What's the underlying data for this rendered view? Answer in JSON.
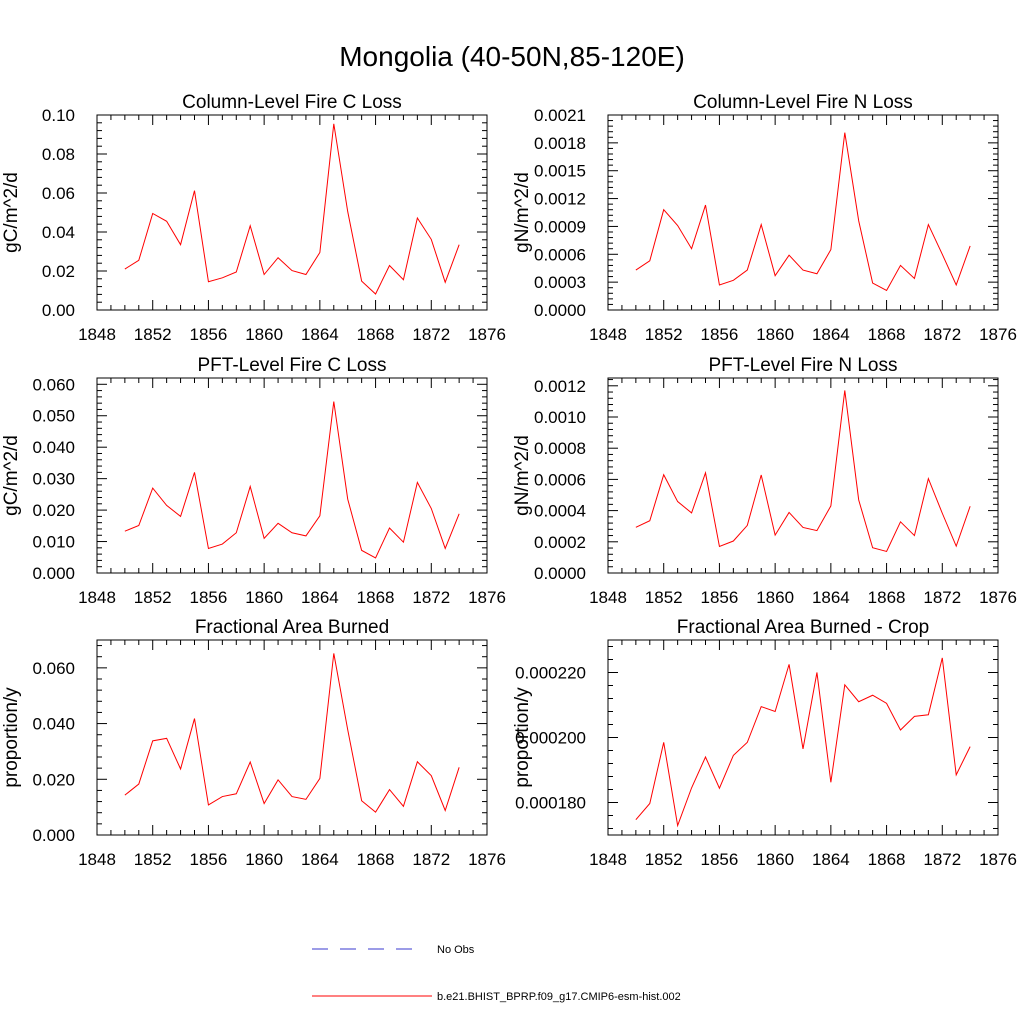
{
  "page_title": "Mongolia (40-50N,85-120E)",
  "legend": {
    "items": [
      {
        "label": "No Obs",
        "color": "#3a3acf",
        "dash": "dashed"
      },
      {
        "label": "b.e21.BHIST_BPRP.f09_g17.CMIP6-esm-hist.002",
        "color": "#ff0000",
        "dash": "solid"
      }
    ]
  },
  "chart_data": [
    {
      "type": "line",
      "title": "Column-Level Fire C Loss",
      "xlabel": "",
      "ylabel": "gC/m^2/d",
      "xlim": [
        1848,
        1876
      ],
      "xticks": [
        1848,
        1852,
        1856,
        1860,
        1864,
        1868,
        1872,
        1876
      ],
      "ylim": [
        0,
        0.1
      ],
      "yticks": [
        0,
        0.02,
        0.04,
        0.06,
        0.08,
        0.1
      ],
      "ytick_labels": [
        "0.00",
        "0.02",
        "0.04",
        "0.06",
        "0.08",
        "0.10"
      ],
      "x": [
        1850,
        1851,
        1852,
        1853,
        1854,
        1855,
        1856,
        1857,
        1858,
        1859,
        1860,
        1861,
        1862,
        1863,
        1864,
        1865,
        1866,
        1867,
        1868,
        1869,
        1870,
        1871,
        1872,
        1873,
        1874
      ],
      "series": [
        {
          "name": "b.e21.BHIST_BPRP.f09_g17.CMIP6-esm-hist.002",
          "color": "#ff0000",
          "values": [
            0.021,
            0.0255,
            0.0495,
            0.0455,
            0.0335,
            0.0612,
            0.0145,
            0.0165,
            0.0195,
            0.0432,
            0.0182,
            0.0268,
            0.0202,
            0.0182,
            0.0295,
            0.0955,
            0.0505,
            0.0148,
            0.0082,
            0.0228,
            0.0155,
            0.0472,
            0.0362,
            0.0142,
            0.0335
          ]
        }
      ]
    },
    {
      "type": "line",
      "title": "Column-Level Fire N Loss",
      "xlabel": "",
      "ylabel": "gN/m^2/d",
      "xlim": [
        1848,
        1876
      ],
      "xticks": [
        1848,
        1852,
        1856,
        1860,
        1864,
        1868,
        1872,
        1876
      ],
      "ylim": [
        0,
        0.0021
      ],
      "yticks": [
        0,
        0.0003,
        0.0006,
        0.0009,
        0.0012,
        0.0015,
        0.0018,
        0.0021
      ],
      "ytick_labels": [
        "0.0000",
        "0.0003",
        "0.0006",
        "0.0009",
        "0.0012",
        "0.0015",
        "0.0018",
        "0.0021"
      ],
      "x": [
        1850,
        1851,
        1852,
        1853,
        1854,
        1855,
        1856,
        1857,
        1858,
        1859,
        1860,
        1861,
        1862,
        1863,
        1864,
        1865,
        1866,
        1867,
        1868,
        1869,
        1870,
        1871,
        1872,
        1873,
        1874
      ],
      "series": [
        {
          "name": "b.e21.BHIST_BPRP.f09_g17.CMIP6-esm-hist.002",
          "color": "#ff0000",
          "values": [
            0.00043,
            0.00053,
            0.00108,
            0.00091,
            0.00066,
            0.00113,
            0.00027,
            0.00032,
            0.00043,
            0.00092,
            0.00037,
            0.00059,
            0.00043,
            0.00039,
            0.00065,
            0.00191,
            0.00096,
            0.00029,
            0.00021,
            0.00048,
            0.00034,
            0.00092,
            0.0006,
            0.00027,
            0.00069
          ]
        }
      ]
    },
    {
      "type": "line",
      "title": "PFT-Level Fire C Loss",
      "xlabel": "",
      "ylabel": "gC/m^2/d",
      "xlim": [
        1848,
        1876
      ],
      "xticks": [
        1848,
        1852,
        1856,
        1860,
        1864,
        1868,
        1872,
        1876
      ],
      "ylim": [
        0,
        0.062
      ],
      "yticks": [
        0,
        0.01,
        0.02,
        0.03,
        0.04,
        0.05,
        0.06
      ],
      "ytick_labels": [
        "0.000",
        "0.010",
        "0.020",
        "0.030",
        "0.040",
        "0.050",
        "0.060"
      ],
      "x": [
        1850,
        1851,
        1852,
        1853,
        1854,
        1855,
        1856,
        1857,
        1858,
        1859,
        1860,
        1861,
        1862,
        1863,
        1864,
        1865,
        1866,
        1867,
        1868,
        1869,
        1870,
        1871,
        1872,
        1873,
        1874
      ],
      "series": [
        {
          "name": "b.e21.BHIST_BPRP.f09_g17.CMIP6-esm-hist.002",
          "color": "#ff0000",
          "values": [
            0.0133,
            0.0151,
            0.027,
            0.0215,
            0.018,
            0.032,
            0.0078,
            0.0092,
            0.0128,
            0.0275,
            0.011,
            0.0158,
            0.0128,
            0.0118,
            0.0182,
            0.0545,
            0.0235,
            0.0072,
            0.0048,
            0.0143,
            0.0098,
            0.0288,
            0.0205,
            0.0078,
            0.0188
          ]
        }
      ]
    },
    {
      "type": "line",
      "title": "PFT-Level Fire N Loss",
      "xlabel": "",
      "ylabel": "gN/m^2/d",
      "xlim": [
        1848,
        1876
      ],
      "xticks": [
        1848,
        1852,
        1856,
        1860,
        1864,
        1868,
        1872,
        1876
      ],
      "ylim": [
        0,
        0.00125
      ],
      "yticks": [
        0,
        0.0002,
        0.0004,
        0.0006,
        0.0008,
        0.001,
        0.0012
      ],
      "ytick_labels": [
        "0.0000",
        "0.0002",
        "0.0004",
        "0.0006",
        "0.0008",
        "0.0010",
        "0.0012"
      ],
      "x": [
        1850,
        1851,
        1852,
        1853,
        1854,
        1855,
        1856,
        1857,
        1858,
        1859,
        1860,
        1861,
        1862,
        1863,
        1864,
        1865,
        1866,
        1867,
        1868,
        1869,
        1870,
        1871,
        1872,
        1873,
        1874
      ],
      "series": [
        {
          "name": "b.e21.BHIST_BPRP.f09_g17.CMIP6-esm-hist.002",
          "color": "#ff0000",
          "values": [
            0.000293,
            0.000335,
            0.00063,
            0.000458,
            0.000385,
            0.000642,
            0.00017,
            0.000205,
            0.000305,
            0.000628,
            0.000243,
            0.000388,
            0.000292,
            0.000272,
            0.00043,
            0.00117,
            0.000468,
            0.000162,
            0.000138,
            0.000328,
            0.00024,
            0.000605,
            0.000383,
            0.000172,
            0.000428
          ]
        }
      ]
    },
    {
      "type": "line",
      "title": "Fractional Area Burned",
      "xlabel": "",
      "ylabel": "proportion/y",
      "xlim": [
        1848,
        1876
      ],
      "xticks": [
        1848,
        1852,
        1856,
        1860,
        1864,
        1868,
        1872,
        1876
      ],
      "ylim": [
        0,
        0.07
      ],
      "yticks": [
        0,
        0.02,
        0.04,
        0.06
      ],
      "ytick_labels": [
        "0.000",
        "0.020",
        "0.040",
        "0.060"
      ],
      "x": [
        1850,
        1851,
        1852,
        1853,
        1854,
        1855,
        1856,
        1857,
        1858,
        1859,
        1860,
        1861,
        1862,
        1863,
        1864,
        1865,
        1866,
        1867,
        1868,
        1869,
        1870,
        1871,
        1872,
        1873,
        1874
      ],
      "series": [
        {
          "name": "b.e21.BHIST_BPRP.f09_g17.CMIP6-esm-hist.002",
          "color": "#ff0000",
          "values": [
            0.0143,
            0.0183,
            0.0338,
            0.0347,
            0.0237,
            0.0418,
            0.0108,
            0.0138,
            0.0148,
            0.0262,
            0.0113,
            0.0198,
            0.0138,
            0.0128,
            0.0203,
            0.0652,
            0.0378,
            0.0123,
            0.0082,
            0.0163,
            0.0103,
            0.0263,
            0.0213,
            0.0088,
            0.0243
          ]
        }
      ]
    },
    {
      "type": "line",
      "title": "Fractional Area Burned - Crop",
      "xlabel": "",
      "ylabel": "proportion/y",
      "xlim": [
        1848,
        1876
      ],
      "xticks": [
        1848,
        1852,
        1856,
        1860,
        1864,
        1868,
        1872,
        1876
      ],
      "ylim": [
        0.00017,
        0.00023
      ],
      "yticks": [
        0.00018,
        0.0002,
        0.00022
      ],
      "ytick_labels": [
        "0.000180",
        "0.000200",
        "0.000220"
      ],
      "x": [
        1850,
        1851,
        1852,
        1853,
        1854,
        1855,
        1856,
        1857,
        1858,
        1859,
        1860,
        1861,
        1862,
        1863,
        1864,
        1865,
        1866,
        1867,
        1868,
        1869,
        1870,
        1871,
        1872,
        1873,
        1874
      ],
      "series": [
        {
          "name": "b.e21.BHIST_BPRP.f09_g17.CMIP6-esm-hist.002",
          "color": "#ff0000",
          "values": [
            0.0001747,
            0.0001797,
            0.0001985,
            0.0001729,
            0.0001845,
            0.000194,
            0.0001844,
            0.0001945,
            0.0001985,
            0.0002095,
            0.000208,
            0.0002225,
            0.0001965,
            0.00022,
            0.0001862,
            0.0002162,
            0.000211,
            0.000213,
            0.0002105,
            0.0002023,
            0.0002065,
            0.000207,
            0.0002245,
            0.0001885,
            0.0001972
          ]
        }
      ]
    }
  ]
}
